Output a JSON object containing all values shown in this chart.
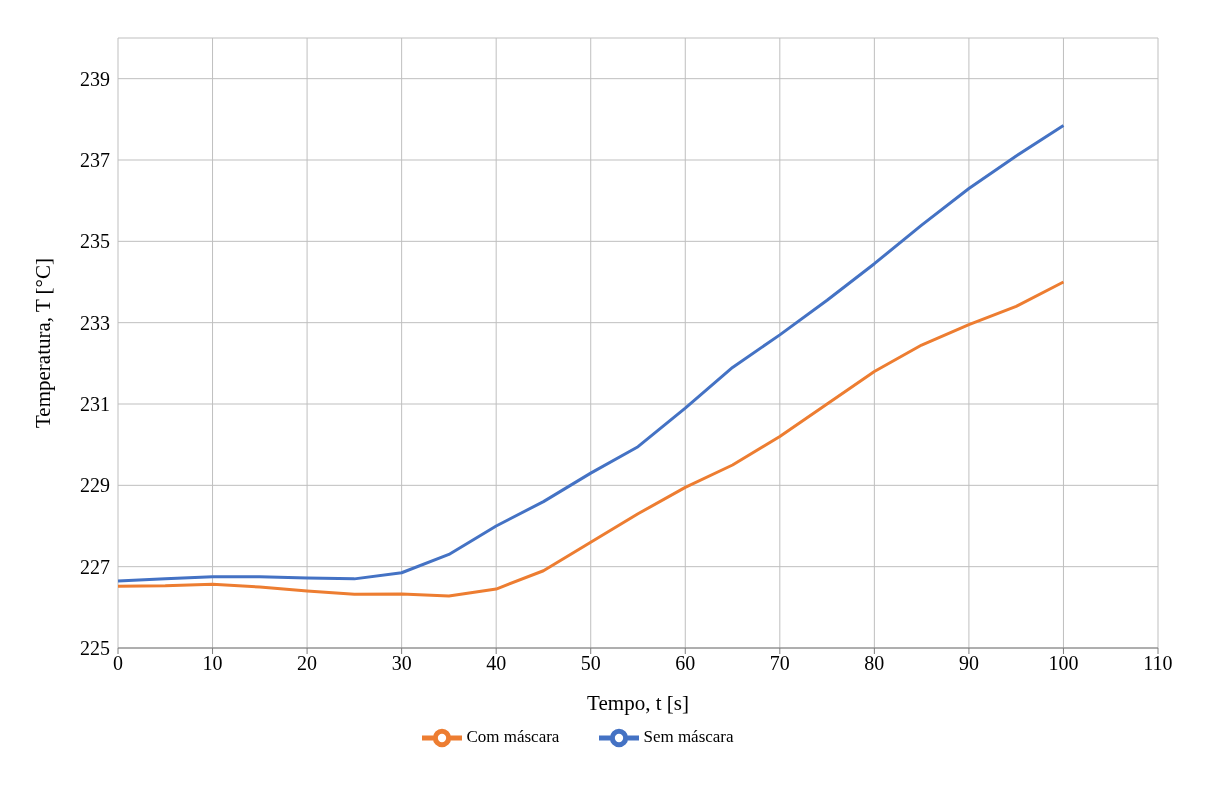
{
  "chart_data": {
    "type": "line",
    "xlabel": "Tempo, t [s]",
    "ylabel": "Temperatura, T [°C]",
    "x": [
      0,
      5,
      10,
      15,
      20,
      25,
      30,
      35,
      40,
      45,
      50,
      55,
      60,
      65,
      70,
      75,
      80,
      85,
      90,
      95,
      100
    ],
    "series": [
      {
        "name": "Sem máscara",
        "color": "#4472c4",
        "values": [
          226.65,
          226.7,
          226.75,
          226.75,
          226.72,
          226.7,
          226.85,
          227.3,
          228.0,
          228.6,
          229.3,
          229.95,
          230.9,
          231.9,
          232.7,
          233.55,
          234.45,
          235.4,
          236.3,
          237.1,
          237.85
        ]
      },
      {
        "name": "Com máscara",
        "color": "#ed7d31",
        "values": [
          226.52,
          226.53,
          226.57,
          226.5,
          226.4,
          226.32,
          226.33,
          226.28,
          226.45,
          226.9,
          227.6,
          228.3,
          228.95,
          229.5,
          230.2,
          231.0,
          231.8,
          232.45,
          232.95,
          233.4,
          234.0
        ]
      }
    ],
    "xlim": [
      0,
      110
    ],
    "xticks": [
      0,
      10,
      20,
      30,
      40,
      50,
      60,
      70,
      80,
      90,
      100,
      110
    ],
    "ylim": [
      225,
      240
    ],
    "yticks": [
      225,
      227,
      229,
      231,
      233,
      235,
      237,
      239
    ],
    "grid": true,
    "legend": "bottom",
    "marker": "none",
    "line_style": "solid"
  }
}
